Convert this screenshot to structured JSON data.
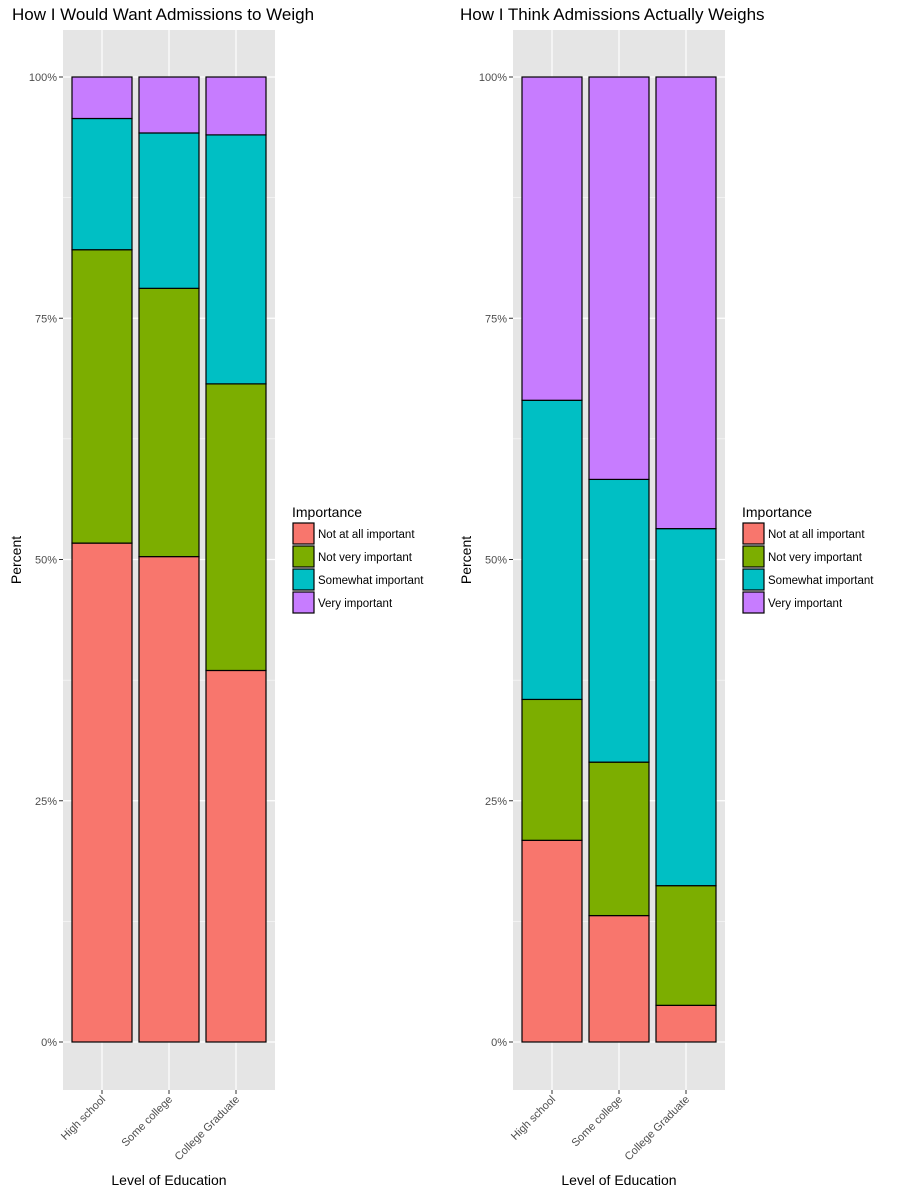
{
  "chart_data": [
    {
      "type": "bar",
      "stacked": true,
      "normalized": true,
      "title": "How I Would Want Admissions to Weigh",
      "xlabel": "Level of Education",
      "ylabel": "Percent",
      "categories": [
        "High school",
        "Some college",
        "College Graduate"
      ],
      "ylim": [
        0,
        1
      ],
      "yticks": [
        "0%",
        "25%",
        "50%",
        "75%",
        "100%"
      ],
      "legend": {
        "title": "Importance",
        "position": "right"
      },
      "series": [
        {
          "name": "Not at all important",
          "color": "#F8766D",
          "values": [
            0.517,
            0.503,
            0.385
          ]
        },
        {
          "name": "Not very important",
          "color": "#7CAE00",
          "values": [
            0.304,
            0.278,
            0.297
          ]
        },
        {
          "name": "Somewhat important",
          "color": "#00BFC4",
          "values": [
            0.136,
            0.161,
            0.258
          ]
        },
        {
          "name": "Very important",
          "color": "#C77CFF",
          "values": [
            0.043,
            0.058,
            0.06
          ]
        }
      ]
    },
    {
      "type": "bar",
      "stacked": true,
      "normalized": true,
      "title": "How I Think Admissions Actually Weighs",
      "xlabel": "Level of Education",
      "ylabel": "Percent",
      "categories": [
        "High school",
        "Some college",
        "College Graduate"
      ],
      "ylim": [
        0,
        1
      ],
      "yticks": [
        "0%",
        "25%",
        "50%",
        "75%",
        "100%"
      ],
      "legend": {
        "title": "Importance",
        "position": "right"
      },
      "series": [
        {
          "name": "Not at all important",
          "color": "#F8766D",
          "values": [
            0.209,
            0.131,
            0.038
          ]
        },
        {
          "name": "Not very important",
          "color": "#7CAE00",
          "values": [
            0.146,
            0.159,
            0.124
          ]
        },
        {
          "name": "Somewhat important",
          "color": "#00BFC4",
          "values": [
            0.31,
            0.293,
            0.37
          ]
        },
        {
          "name": "Very important",
          "color": "#C77CFF",
          "values": [
            0.335,
            0.417,
            0.468
          ]
        }
      ]
    }
  ],
  "style": {
    "panel_background": "#E5E5E5",
    "grid_color": "#FFFFFF",
    "bar_border": "#000000"
  }
}
